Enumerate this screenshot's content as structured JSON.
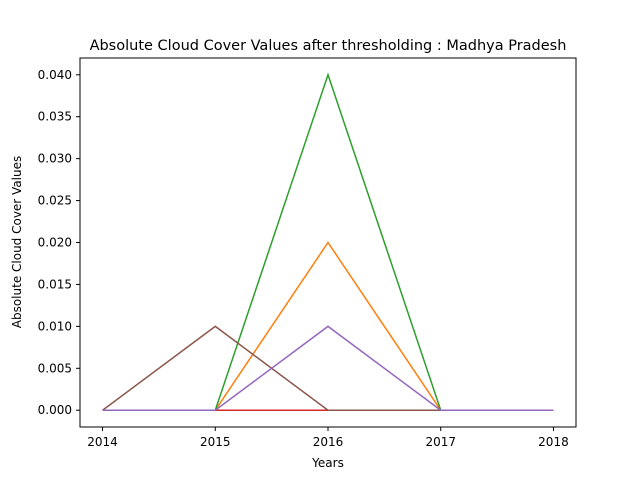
{
  "chart_data": {
    "type": "line",
    "title": "Absolute Cloud Cover Values after thresholding : Madhya Pradesh",
    "xlabel": "Years",
    "ylabel": "Absolute Cloud Cover Values",
    "x": [
      2014,
      2015,
      2016,
      2017,
      2018
    ],
    "xticks": [
      "2014",
      "2015",
      "2016",
      "2017",
      "2018"
    ],
    "yticks": [
      "0.000",
      "0.005",
      "0.010",
      "0.015",
      "0.020",
      "0.025",
      "0.030",
      "0.035",
      "0.040"
    ],
    "ylim": [
      -0.002,
      0.042
    ],
    "xlim": [
      2013.8,
      2018.2
    ],
    "grid": false,
    "series": [
      {
        "values": [
          0,
          0,
          0,
          0,
          0
        ],
        "color": "#1f77b4"
      },
      {
        "values": [
          0,
          0,
          0.02,
          0,
          0
        ],
        "color": "#ff7f0e"
      },
      {
        "values": [
          0,
          0,
          0.04,
          0,
          0
        ],
        "color": "#2ca02c"
      },
      {
        "values": [
          0,
          0,
          0,
          0,
          0
        ],
        "color": "#d62728"
      },
      {
        "values": [
          0,
          0.01,
          0,
          0,
          0
        ],
        "color": "#8c564b"
      },
      {
        "values": [
          0,
          0,
          0.01,
          0,
          0
        ],
        "color": "#9467bd"
      }
    ]
  }
}
